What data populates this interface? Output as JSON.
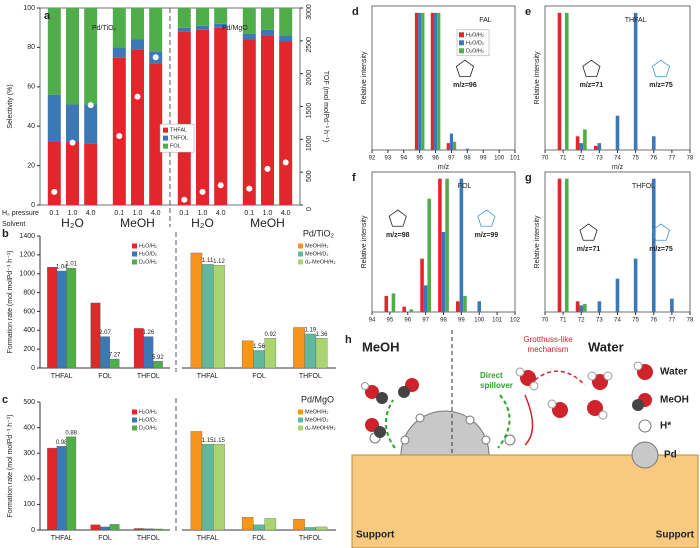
{
  "chart_data": [
    {
      "type": "stacked_bar",
      "panel": "a",
      "ylabel": "Selectivity (%)",
      "y2label": "TOF (mol molPd⁻¹ h⁻¹)",
      "categories": [
        "0.1",
        "1.0",
        "4.0",
        "0.1",
        "1.0",
        "4.0",
        "0.1",
        "1.0",
        "4.0",
        "0.1",
        "1.0",
        "4.0"
      ],
      "pressure_label": "H₂ pressure",
      "solvent_label": "Solvent",
      "solvents": [
        "H₂O",
        "MeOH",
        "H₂O",
        "MeOH"
      ],
      "catalysts": [
        "Pd/TiO₂",
        "Pd/MgO"
      ],
      "series": [
        {
          "name": "THFAL",
          "color": "#e3262b",
          "values": [
            32,
            32,
            31,
            75,
            79,
            72,
            88,
            89,
            90,
            84,
            86,
            83
          ]
        },
        {
          "name": "THFOL",
          "color": "#3b78b5",
          "values": [
            24,
            19,
            20,
            5,
            5,
            6,
            2,
            2,
            2,
            3,
            3,
            3
          ]
        },
        {
          "name": "FOL",
          "color": "#4fae4a",
          "values": [
            44,
            49,
            49,
            20,
            16,
            22,
            10,
            9,
            8,
            13,
            11,
            14
          ]
        }
      ],
      "tof": {
        "color": "#ffffff",
        "axis": "y2",
        "values": [
          200,
          950,
          1520,
          1050,
          1650,
          2250,
          80,
          200,
          300,
          250,
          550,
          650
        ]
      },
      "ylim": [
        0,
        100
      ],
      "yticks": [
        0,
        20,
        40,
        60,
        80,
        100
      ],
      "y2lim": [
        0,
        3000
      ],
      "y2ticks": [
        0,
        500,
        1000,
        1500,
        2000,
        2500,
        3000
      ],
      "legend": "center"
    },
    {
      "type": "grouped_bar",
      "panel": "b",
      "ylabel": "Formation rate (mol molPd⁻¹ h⁻¹)",
      "categories": [
        "THFAL",
        "FOL",
        "THFOL"
      ],
      "series": [
        {
          "name": "H₂O/H₂",
          "color": "#e3262b",
          "values": [
            1070,
            690,
            420
          ]
        },
        {
          "name": "H₂O/D₂",
          "color": "#3b78b5",
          "values": [
            1029,
            333,
            333
          ],
          "ratios": [
            1.04,
            2.07,
            1.26
          ]
        },
        {
          "name": "D₂O/H₂",
          "color": "#4fae4a",
          "values": [
            1059,
            95,
            71
          ],
          "ratios": [
            1.01,
            7.27,
            5.92
          ]
        }
      ],
      "ylim": [
        0,
        1400
      ],
      "yticks": [
        0,
        200,
        400,
        600,
        800,
        1000,
        1200,
        1400
      ],
      "legend": "upper right"
    },
    {
      "type": "grouped_bar",
      "catalyst": "Pd/TiO₂",
      "categories": [
        "THFAL",
        "FOL",
        "THFOL"
      ],
      "series": [
        {
          "name": "MeOH/H₂",
          "color": "#f7941d",
          "values": [
            1220,
            290,
            430
          ]
        },
        {
          "name": "MeOH/D₂",
          "color": "#5fb99c",
          "values": [
            1099,
            186,
            361
          ],
          "ratios": [
            1.11,
            1.56,
            1.19
          ]
        },
        {
          "name": "d₄-MeOH/H₂",
          "color": "#a9d46f",
          "values": [
            1089,
            315,
            316
          ],
          "ratios": [
            1.12,
            0.92,
            1.36
          ]
        }
      ],
      "ylim": [
        0,
        1400
      ],
      "legend": "upper right"
    },
    {
      "type": "grouped_bar",
      "panel": "c",
      "ylabel": "Formation rate (mol molPd⁻¹ h⁻¹)",
      "categories": [
        "THFAL",
        "FOL",
        "THFOL"
      ],
      "series": [
        {
          "name": "H₂O/H₂",
          "color": "#e3262b",
          "values": [
            320,
            20,
            6
          ]
        },
        {
          "name": "H₂O/D₂",
          "color": "#3b78b5",
          "values": [
            327,
            12,
            5
          ],
          "ratios": [
            0.98,
            null,
            null
          ]
        },
        {
          "name": "D₂O/H₂",
          "color": "#4fae4a",
          "values": [
            364,
            22,
            4
          ],
          "ratios": [
            0.88,
            null,
            null
          ]
        }
      ],
      "ylim": [
        0,
        500
      ],
      "yticks": [
        0,
        100,
        200,
        300,
        400,
        500
      ],
      "legend": "upper right"
    },
    {
      "type": "grouped_bar",
      "catalyst": "Pd/MgO",
      "categories": [
        "THFAL",
        "FOL",
        "THFOL"
      ],
      "series": [
        {
          "name": "MeOH/H₂",
          "color": "#f7941d",
          "values": [
            385,
            50,
            42
          ]
        },
        {
          "name": "MeOH/D₂",
          "color": "#5fb99c",
          "values": [
            335,
            20,
            10
          ],
          "ratios": [
            1.15,
            null,
            null
          ]
        },
        {
          "name": "d₄-MeOH/H₂",
          "color": "#a9d46f",
          "values": [
            335,
            45,
            12
          ],
          "ratios": [
            1.15,
            null,
            null
          ]
        }
      ],
      "ylim": [
        0,
        500
      ],
      "legend": "upper right"
    },
    {
      "type": "spectrum",
      "panel": "d",
      "compound": "FAL",
      "mz_labels": [
        "m/z=96"
      ],
      "xlabel": "m/z",
      "ylabel": "Relative intensity",
      "x": [
        95,
        96,
        97,
        98
      ],
      "series": [
        {
          "name": "H₂O/H₂",
          "color": "#e3262b",
          "values": [
            100,
            100,
            5,
            0
          ]
        },
        {
          "name": "H₂O/D₂",
          "color": "#3b78b5",
          "values": [
            100,
            100,
            12,
            1
          ]
        },
        {
          "name": "D₂O/H₂",
          "color": "#4fae4a",
          "values": [
            100,
            100,
            6,
            0
          ]
        }
      ],
      "xlim": [
        92,
        101
      ],
      "xticks": [
        92,
        93,
        94,
        95,
        96,
        97,
        98,
        99,
        100,
        101
      ],
      "ylim": [
        0,
        105
      ],
      "legend": "upper right"
    },
    {
      "type": "spectrum",
      "panel": "e",
      "compound": "THFAL",
      "mz_labels": [
        "m/z=71",
        "m/z=75"
      ],
      "xlabel": "m/z",
      "ylabel": "Relative intensity",
      "x": [
        71,
        72,
        73,
        74,
        75,
        76
      ],
      "series": [
        {
          "color": "#e3262b",
          "values": [
            100,
            10,
            3,
            0,
            0,
            0
          ]
        },
        {
          "color": "#3b78b5",
          "values": [
            0,
            5,
            5,
            25,
            100,
            10
          ]
        },
        {
          "color": "#4fae4a",
          "values": [
            100,
            15,
            0,
            0,
            0,
            0
          ]
        }
      ],
      "xlim": [
        70,
        78
      ],
      "xticks": [
        70,
        71,
        72,
        73,
        74,
        75,
        76,
        77,
        78
      ],
      "ylim": [
        0,
        105
      ]
    },
    {
      "type": "spectrum",
      "panel": "f",
      "compound": "FOL",
      "mz_labels": [
        "m/z=98",
        "m/z=99"
      ],
      "ylabel": "Relative intensity",
      "x": [
        95,
        96,
        97,
        98,
        99,
        100
      ],
      "series": [
        {
          "color": "#e3262b",
          "values": [
            12,
            4,
            40,
            100,
            8,
            0
          ]
        },
        {
          "color": "#3b78b5",
          "values": [
            0,
            0,
            20,
            60,
            100,
            8
          ]
        },
        {
          "color": "#4fae4a",
          "values": [
            14,
            2,
            85,
            100,
            12,
            0
          ]
        }
      ],
      "xlim": [
        94,
        102
      ],
      "xticks": [
        94,
        95,
        96,
        97,
        98,
        99,
        100,
        101,
        102
      ],
      "ylim": [
        0,
        105
      ]
    },
    {
      "type": "spectrum",
      "panel": "g",
      "compound": "THFOL",
      "mz_labels": [
        "m/z=71",
        "m/z=75"
      ],
      "ylabel": "Relative intensity",
      "x": [
        71,
        72,
        73,
        74,
        75,
        76,
        77
      ],
      "series": [
        {
          "color": "#e3262b",
          "values": [
            100,
            8,
            0,
            0,
            0,
            0,
            0
          ]
        },
        {
          "color": "#3b78b5",
          "values": [
            0,
            5,
            8,
            25,
            40,
            100,
            10
          ]
        },
        {
          "color": "#4fae4a",
          "values": [
            100,
            6,
            0,
            0,
            0,
            0,
            0
          ]
        }
      ],
      "xlim": [
        70,
        78
      ],
      "xticks": [
        70,
        71,
        72,
        73,
        74,
        75,
        76,
        77,
        78
      ],
      "ylim": [
        0,
        105
      ]
    }
  ],
  "diagram": {
    "panel": "h",
    "left_title": "MeOH",
    "right_title": "Water",
    "spillover_label": [
      "Direct",
      "spillover"
    ],
    "grotthuss_label": [
      "Grotthuss-like",
      "mechanism"
    ],
    "legend": [
      "Water",
      "MeOH",
      "H*",
      "Pd"
    ],
    "support_left": "Support",
    "support_right": "Support"
  }
}
